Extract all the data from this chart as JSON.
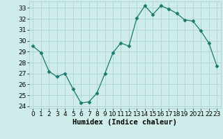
{
  "x": [
    0,
    1,
    2,
    3,
    4,
    5,
    6,
    7,
    8,
    9,
    10,
    11,
    12,
    13,
    14,
    15,
    16,
    17,
    18,
    19,
    20,
    21,
    22,
    23
  ],
  "y": [
    29.5,
    28.9,
    27.2,
    26.7,
    27.0,
    25.6,
    24.3,
    24.4,
    25.2,
    27.0,
    28.9,
    29.8,
    29.5,
    32.1,
    33.2,
    32.4,
    33.2,
    32.9,
    32.5,
    31.9,
    31.8,
    30.9,
    29.8,
    27.7
  ],
  "xlabel": "Humidex (Indice chaleur)",
  "xlim": [
    -0.5,
    23.5
  ],
  "ylim": [
    23.8,
    33.6
  ],
  "yticks": [
    24,
    25,
    26,
    27,
    28,
    29,
    30,
    31,
    32,
    33
  ],
  "xticks": [
    0,
    1,
    2,
    3,
    4,
    5,
    6,
    7,
    8,
    9,
    10,
    11,
    12,
    13,
    14,
    15,
    16,
    17,
    18,
    19,
    20,
    21,
    22,
    23
  ],
  "line_color": "#1a7a6e",
  "marker": "D",
  "marker_size": 2.5,
  "bg_color": "#ceecea",
  "grid_color": "#aacfcd",
  "tick_label_fontsize": 6.5,
  "xlabel_fontsize": 7.5
}
